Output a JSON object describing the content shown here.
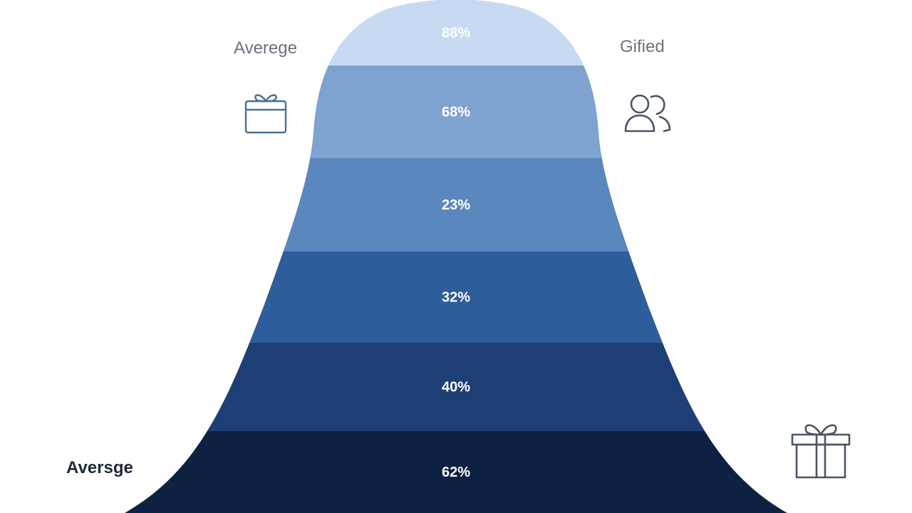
{
  "chart_data": {
    "type": "funnel",
    "segments": [
      {
        "label": "88%",
        "color": "#c7daf1"
      },
      {
        "label": "68%",
        "color": "#7ea3d1"
      },
      {
        "label": "23%",
        "color": "#5b87bf"
      },
      {
        "label": "32%",
        "color": "#2e5d9b"
      },
      {
        "label": "40%",
        "color": "#1d3f75"
      },
      {
        "label": "62%",
        "color": "#0e2142"
      }
    ],
    "annotations": {
      "top_left": "Averege",
      "top_right": "Gified",
      "bottom_left": "Aversge"
    }
  },
  "icons": {
    "top_left": "gift-icon",
    "top_right": "users-icon",
    "bottom_right": "gift-icon"
  },
  "colors": {
    "label_gray": "#6b7280",
    "label_dark": "#1f2937",
    "icon_blue": "#4a6f99",
    "icon_gray": "#4b5563"
  }
}
